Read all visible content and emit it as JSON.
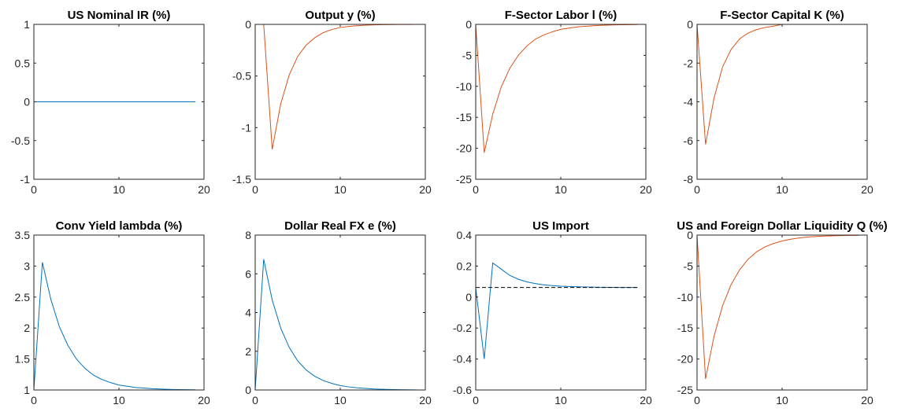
{
  "chart_data": [
    {
      "type": "line",
      "title": "US Nominal IR (%)",
      "xlim": [
        0,
        20
      ],
      "ylim": [
        -1,
        1
      ],
      "xticks": [
        0,
        10,
        20
      ],
      "yticks": [
        -1,
        -0.5,
        0,
        0.5,
        1
      ],
      "xticklabels": [
        "0",
        "10",
        "20"
      ],
      "yticklabels": [
        "-1",
        "-0.5",
        "0",
        "0.5",
        "1"
      ],
      "series": [
        {
          "color": "#0072BD",
          "dashed": false,
          "x": [
            0,
            1,
            2,
            3,
            4,
            5,
            6,
            7,
            8,
            9,
            10,
            11,
            12,
            13,
            14,
            15,
            16,
            17,
            18,
            19
          ],
          "y": [
            0,
            0,
            0,
            0,
            0,
            0,
            0,
            0,
            0,
            0,
            0,
            0,
            0,
            0,
            0,
            0,
            0,
            0,
            0,
            0
          ]
        }
      ]
    },
    {
      "type": "line",
      "title": "Output y (%)",
      "xlim": [
        0,
        20
      ],
      "ylim": [
        -1.5,
        0
      ],
      "xticks": [
        0,
        10,
        20
      ],
      "yticks": [
        -1.5,
        -1,
        -0.5,
        0
      ],
      "xticklabels": [
        "0",
        "10",
        "20"
      ],
      "yticklabels": [
        "-1.5",
        "-1",
        "-0.5",
        "0"
      ],
      "series": [
        {
          "color": "#0072BD",
          "dashed": false,
          "x": [
            0,
            1,
            2,
            3,
            4,
            5,
            6,
            7,
            8,
            9,
            10,
            11,
            12,
            13,
            14,
            15,
            16,
            17,
            18,
            19
          ],
          "y": [
            0,
            0,
            0,
            0,
            0,
            0,
            0,
            0,
            0,
            0,
            0,
            0,
            0,
            0,
            0,
            0,
            0,
            0,
            0,
            0
          ]
        },
        {
          "color": "#D95319",
          "dashed": false,
          "x": [
            0,
            1,
            2,
            3,
            4,
            5,
            6,
            7,
            8,
            9,
            10,
            11,
            12,
            13,
            14,
            15,
            16,
            17,
            18,
            19
          ],
          "y": [
            0,
            0,
            -1.21,
            -0.77,
            -0.49,
            -0.31,
            -0.2,
            -0.13,
            -0.08,
            -0.05,
            -0.03,
            -0.02,
            -0.013,
            -0.008,
            -0.005,
            -0.003,
            -0.002,
            -0.001,
            -0.001,
            0
          ]
        }
      ]
    },
    {
      "type": "line",
      "title": "F-Sector Labor l (%)",
      "xlim": [
        0,
        20
      ],
      "ylim": [
        -25,
        0
      ],
      "xticks": [
        0,
        10,
        20
      ],
      "yticks": [
        -25,
        -20,
        -15,
        -10,
        -5,
        0
      ],
      "xticklabels": [
        "0",
        "10",
        "20"
      ],
      "yticklabels": [
        "-25",
        "-20",
        "-15",
        "-10",
        "-5",
        "0"
      ],
      "series": [
        {
          "color": "#0072BD",
          "dashed": false,
          "x": [
            0,
            1,
            2,
            3,
            4,
            5,
            6,
            7,
            8,
            9,
            10,
            11,
            12,
            13,
            14,
            15,
            16,
            17,
            18,
            19
          ],
          "y": [
            0,
            0,
            0,
            0,
            0,
            0,
            0,
            0,
            0,
            0,
            0,
            0,
            0,
            0,
            0,
            0,
            0,
            0,
            0,
            0
          ]
        },
        {
          "color": "#D95319",
          "dashed": false,
          "x": [
            0,
            1,
            2,
            3,
            4,
            5,
            6,
            7,
            8,
            9,
            10,
            11,
            12,
            13,
            14,
            15,
            16,
            17,
            18,
            19
          ],
          "y": [
            0,
            -20.7,
            -14.5,
            -10.1,
            -7.1,
            -5.0,
            -3.5,
            -2.4,
            -1.7,
            -1.2,
            -0.8,
            -0.6,
            -0.4,
            -0.3,
            -0.2,
            -0.14,
            -0.1,
            -0.07,
            -0.05,
            -0.03
          ]
        }
      ]
    },
    {
      "type": "line",
      "title": "F-Sector Capital K (%)",
      "xlim": [
        0,
        20
      ],
      "ylim": [
        -8,
        0
      ],
      "xticks": [
        0,
        10,
        20
      ],
      "yticks": [
        -8,
        -6,
        -4,
        -2,
        0
      ],
      "xticklabels": [
        "0",
        "10",
        "20"
      ],
      "yticklabels": [
        "-8",
        "-6",
        "-4",
        "-2",
        "0"
      ],
      "series": [
        {
          "color": "#0072BD",
          "dashed": false,
          "x": [
            0,
            1,
            2,
            3,
            4,
            5,
            6,
            7,
            8,
            9,
            10,
            11,
            12,
            13,
            14,
            15,
            16,
            17,
            18,
            19
          ],
          "y": [
            0,
            0,
            0,
            0,
            0,
            0,
            0,
            0,
            0,
            0,
            0,
            0,
            0,
            0,
            0,
            0,
            0,
            0,
            0,
            0
          ]
        },
        {
          "color": "#D95319",
          "dashed": false,
          "x": [
            0,
            1,
            2,
            3,
            4,
            5,
            6,
            7,
            8,
            9,
            10,
            11,
            12,
            13,
            14,
            15,
            16,
            17,
            18,
            19
          ],
          "y": [
            0,
            -6.2,
            -3.8,
            -2.2,
            -1.3,
            -0.75,
            -0.45,
            -0.27,
            -0.16,
            -0.09,
            0,
            0,
            0,
            0,
            0,
            0,
            0,
            0,
            0,
            0
          ]
        }
      ]
    },
    {
      "type": "line",
      "title": "Conv Yield lambda (%)",
      "xlim": [
        0,
        20
      ],
      "ylim": [
        1,
        3.5
      ],
      "xticks": [
        0,
        10,
        20
      ],
      "yticks": [
        1,
        1.5,
        2,
        2.5,
        3,
        3.5
      ],
      "xticklabels": [
        "0",
        "10",
        "20"
      ],
      "yticklabels": [
        "1",
        "1.5",
        "2",
        "2.5",
        "3",
        "3.5"
      ],
      "series": [
        {
          "color": "#0072BD",
          "dashed": false,
          "x": [
            0,
            1,
            2,
            3,
            4,
            5,
            6,
            7,
            8,
            9,
            10,
            11,
            12,
            13,
            14,
            15,
            16,
            17,
            18,
            19
          ],
          "y": [
            1.0,
            3.06,
            2.46,
            2.02,
            1.72,
            1.5,
            1.35,
            1.24,
            1.17,
            1.12,
            1.08,
            1.06,
            1.04,
            1.03,
            1.02,
            1.015,
            1.01,
            1.007,
            1.005,
            1.003
          ]
        }
      ]
    },
    {
      "type": "line",
      "title": "Dollar Real FX e (%)",
      "xlim": [
        0,
        20
      ],
      "ylim": [
        0,
        8
      ],
      "xticks": [
        0,
        10,
        20
      ],
      "yticks": [
        0,
        2,
        4,
        6,
        8
      ],
      "xticklabels": [
        "0",
        "10",
        "20"
      ],
      "yticklabels": [
        "0",
        "2",
        "4",
        "6",
        "8"
      ],
      "series": [
        {
          "color": "#0072BD",
          "dashed": false,
          "x": [
            0,
            1,
            2,
            3,
            4,
            5,
            6,
            7,
            8,
            9,
            10,
            11,
            12,
            13,
            14,
            15,
            16,
            17,
            18,
            19
          ],
          "y": [
            0,
            6.75,
            4.65,
            3.2,
            2.2,
            1.5,
            1.03,
            0.71,
            0.49,
            0.34,
            0.23,
            0.16,
            0.11,
            0.08,
            0.05,
            0.035,
            0.025,
            0.015,
            0.01,
            0.007
          ]
        }
      ]
    },
    {
      "type": "line",
      "title": "US Import",
      "xlim": [
        0,
        20
      ],
      "ylim": [
        -0.6,
        0.4
      ],
      "xticks": [
        0,
        10,
        20
      ],
      "yticks": [
        -0.6,
        -0.4,
        -0.2,
        0,
        0.2,
        0.4
      ],
      "xticklabels": [
        "0",
        "10",
        "20"
      ],
      "yticklabels": [
        "-0.6",
        "-0.4",
        "-0.2",
        "0",
        "0.2",
        "0.4"
      ],
      "series": [
        {
          "color": "#0072BD",
          "dashed": false,
          "x": [
            0,
            1,
            2,
            3,
            4,
            5,
            6,
            7,
            8,
            9,
            10,
            11,
            12,
            13,
            14,
            15,
            16,
            17,
            18,
            19
          ],
          "y": [
            0.06,
            -0.4,
            0.22,
            0.18,
            0.14,
            0.115,
            0.098,
            0.087,
            0.079,
            0.074,
            0.07,
            0.068,
            0.066,
            0.065,
            0.064,
            0.063,
            0.0625,
            0.062,
            0.062,
            0.062
          ]
        },
        {
          "color": "#000000",
          "dashed": true,
          "x": [
            0,
            19
          ],
          "y": [
            0.062,
            0.062
          ]
        }
      ]
    },
    {
      "type": "line",
      "title": "US and Foreign Dollar Liquidity Q (%)",
      "xlim": [
        0,
        20
      ],
      "ylim": [
        -25,
        0
      ],
      "xticks": [
        0,
        10,
        20
      ],
      "yticks": [
        -25,
        -20,
        -15,
        -10,
        -5,
        0
      ],
      "xticklabels": [
        "0",
        "10",
        "20"
      ],
      "yticklabels": [
        "-25",
        "-20",
        "-15",
        "-10",
        "-5",
        "0"
      ],
      "series": [
        {
          "color": "#0072BD",
          "dashed": false,
          "x": [
            0,
            1,
            2,
            3,
            4,
            5,
            6,
            7,
            8,
            9,
            10,
            11,
            12,
            13,
            14,
            15,
            16,
            17,
            18,
            19
          ],
          "y": [
            0,
            0,
            0,
            0,
            0,
            0,
            0,
            0,
            0,
            0,
            0,
            0,
            0,
            0,
            0,
            0,
            0,
            0,
            0,
            0
          ]
        },
        {
          "color": "#D95319",
          "dashed": false,
          "x": [
            0,
            1,
            2,
            3,
            4,
            5,
            6,
            7,
            8,
            9,
            10,
            11,
            12,
            13,
            14,
            15,
            16,
            17,
            18,
            19
          ],
          "y": [
            0,
            -23.2,
            -16.3,
            -11.4,
            -8.0,
            -5.6,
            -3.9,
            -2.7,
            -1.9,
            -1.35,
            -0.95,
            -0.66,
            -0.46,
            -0.32,
            -0.22,
            -0.16,
            -0.11,
            -0.08,
            -0.05,
            -0.04
          ]
        }
      ]
    }
  ]
}
